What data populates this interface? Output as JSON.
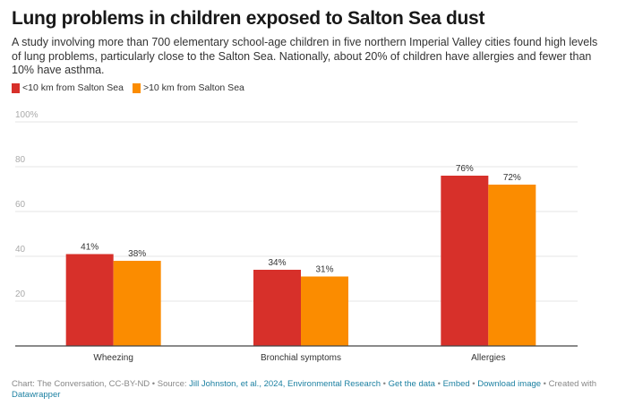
{
  "title": "Lung problems in children exposed to Salton Sea dust",
  "description": "A study involving more than 700 elementary school-age children in five northern Imperial Valley cities found high levels of lung problems, particularly close to the Salton Sea. Nationally, about 20% of children have allergies and fewer than 10% have asthma.",
  "legend": [
    {
      "label": "<10 km from Salton Sea",
      "color": "#d7302a"
    },
    {
      "label": ">10 km from Salton Sea",
      "color": "#fb8c00"
    }
  ],
  "footer": {
    "chart_credit": "Chart: The Conversation, CC-BY-ND",
    "sep": " • ",
    "source_label": "Source: ",
    "source_link": "Jill Johnston, et al., 2024, Environmental Research",
    "get_data": "Get the data",
    "embed": "Embed",
    "download": "Download image",
    "created_with": "Created with ",
    "datawrapper": "Datawrapper"
  },
  "chart_data": {
    "type": "bar",
    "title": "Lung problems in children exposed to Salton Sea dust",
    "xlabel": "",
    "ylabel": "",
    "ylim": [
      0,
      100
    ],
    "yticks": [
      20,
      40,
      60,
      80,
      100
    ],
    "ytick_labels": [
      "20",
      "40",
      "60",
      "80",
      "100%"
    ],
    "grid": true,
    "legend_position": "top-left",
    "categories": [
      "Wheezing",
      "Bronchial symptoms",
      "Allergies"
    ],
    "series": [
      {
        "name": "<10 km from Salton Sea",
        "color": "#d7302a",
        "values": [
          41,
          34,
          76
        ],
        "labels": [
          "41%",
          "34%",
          "76%"
        ]
      },
      {
        "name": ">10 km from Salton Sea",
        "color": "#fb8c00",
        "values": [
          38,
          31,
          72
        ],
        "labels": [
          "38%",
          "31%",
          "72%"
        ]
      }
    ]
  }
}
